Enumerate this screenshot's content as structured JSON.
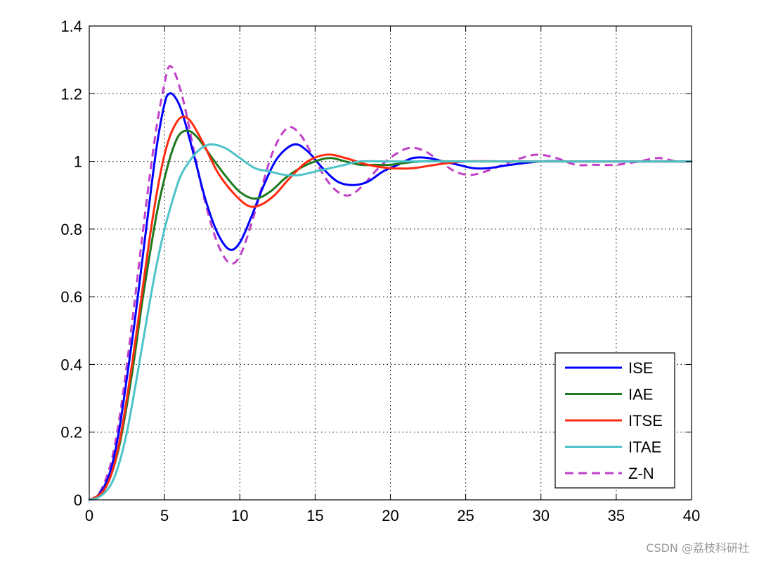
{
  "chart_data": {
    "type": "line",
    "title": "",
    "xlabel": "",
    "ylabel": "",
    "xlim": [
      0,
      40
    ],
    "ylim": [
      0,
      1.4
    ],
    "xticks": [
      "0",
      "5",
      "10",
      "15",
      "20",
      "25",
      "30",
      "35",
      "40"
    ],
    "yticks": [
      "0",
      "0.2",
      "0.4",
      "0.6",
      "0.8",
      "1",
      "1.2",
      "1.4"
    ],
    "grid": true,
    "legend_position": "bottom-right",
    "series": [
      {
        "name": "ISE",
        "color": "#0000ff",
        "dash": "solid",
        "points": [
          [
            0,
            0
          ],
          [
            0.5,
            0.01
          ],
          [
            1,
            0.04
          ],
          [
            1.5,
            0.1
          ],
          [
            2,
            0.21
          ],
          [
            2.5,
            0.36
          ],
          [
            3,
            0.52
          ],
          [
            3.5,
            0.7
          ],
          [
            4,
            0.88
          ],
          [
            4.5,
            1.05
          ],
          [
            5,
            1.17
          ],
          [
            5.3,
            1.2
          ],
          [
            5.7,
            1.19
          ],
          [
            6.2,
            1.14
          ],
          [
            7,
            1.01
          ],
          [
            7.7,
            0.89
          ],
          [
            8.5,
            0.79
          ],
          [
            9.3,
            0.74
          ],
          [
            10,
            0.76
          ],
          [
            10.8,
            0.84
          ],
          [
            11.6,
            0.93
          ],
          [
            12.5,
            1.01
          ],
          [
            13.6,
            1.05
          ],
          [
            14.5,
            1.03
          ],
          [
            15.5,
            0.98
          ],
          [
            16.5,
            0.94
          ],
          [
            17.5,
            0.93
          ],
          [
            18.5,
            0.94
          ],
          [
            19.5,
            0.97
          ],
          [
            20.5,
            0.99
          ],
          [
            21.5,
            1.01
          ],
          [
            22.5,
            1.01
          ],
          [
            23.5,
            1.0
          ],
          [
            24.5,
            0.99
          ],
          [
            25.5,
            0.98
          ],
          [
            26.5,
            0.98
          ],
          [
            28,
            0.99
          ],
          [
            30,
            1.0
          ],
          [
            32,
            1.0
          ],
          [
            35,
            1.0
          ],
          [
            38,
            1.0
          ],
          [
            40,
            1.0
          ]
        ]
      },
      {
        "name": "IAE",
        "color": "#1f7a1f",
        "dash": "solid",
        "points": [
          [
            0,
            0
          ],
          [
            0.5,
            0.01
          ],
          [
            1,
            0.03
          ],
          [
            1.5,
            0.08
          ],
          [
            2,
            0.16
          ],
          [
            2.5,
            0.28
          ],
          [
            3,
            0.42
          ],
          [
            3.5,
            0.58
          ],
          [
            4,
            0.72
          ],
          [
            4.5,
            0.85
          ],
          [
            5,
            0.95
          ],
          [
            5.5,
            1.03
          ],
          [
            6,
            1.08
          ],
          [
            6.6,
            1.09
          ],
          [
            7.2,
            1.07
          ],
          [
            8,
            1.02
          ],
          [
            9,
            0.96
          ],
          [
            10,
            0.91
          ],
          [
            11,
            0.89
          ],
          [
            12,
            0.91
          ],
          [
            13,
            0.95
          ],
          [
            14,
            0.98
          ],
          [
            15,
            1.0
          ],
          [
            16,
            1.01
          ],
          [
            17,
            1.0
          ],
          [
            18,
            0.99
          ],
          [
            19,
            0.99
          ],
          [
            20,
            0.99
          ],
          [
            22,
            1.0
          ],
          [
            25,
            1.0
          ],
          [
            30,
            1.0
          ],
          [
            35,
            1.0
          ],
          [
            40,
            1.0
          ]
        ]
      },
      {
        "name": "ITSE",
        "color": "#ff2a10",
        "dash": "solid",
        "points": [
          [
            0,
            0
          ],
          [
            0.5,
            0.01
          ],
          [
            1,
            0.03
          ],
          [
            1.5,
            0.08
          ],
          [
            2,
            0.17
          ],
          [
            2.5,
            0.3
          ],
          [
            3,
            0.45
          ],
          [
            3.5,
            0.61
          ],
          [
            4,
            0.77
          ],
          [
            4.5,
            0.91
          ],
          [
            5,
            1.02
          ],
          [
            5.5,
            1.09
          ],
          [
            6.1,
            1.13
          ],
          [
            6.7,
            1.12
          ],
          [
            7.5,
            1.06
          ],
          [
            8.5,
            0.97
          ],
          [
            9.5,
            0.91
          ],
          [
            10.5,
            0.87
          ],
          [
            11.3,
            0.87
          ],
          [
            12.3,
            0.9
          ],
          [
            13.3,
            0.95
          ],
          [
            14.5,
            1.0
          ],
          [
            15.8,
            1.02
          ],
          [
            17,
            1.01
          ],
          [
            18.5,
            0.99
          ],
          [
            20,
            0.98
          ],
          [
            21.5,
            0.98
          ],
          [
            23,
            0.99
          ],
          [
            25,
            1.0
          ],
          [
            28,
            1.0
          ],
          [
            32,
            1.0
          ],
          [
            36,
            1.0
          ],
          [
            40,
            1.0
          ]
        ]
      },
      {
        "name": "ITAE",
        "color": "#4cc3c8",
        "dash": "solid",
        "points": [
          [
            0,
            0
          ],
          [
            0.5,
            0.005
          ],
          [
            1,
            0.02
          ],
          [
            1.5,
            0.05
          ],
          [
            2,
            0.11
          ],
          [
            2.5,
            0.2
          ],
          [
            3,
            0.32
          ],
          [
            3.5,
            0.45
          ],
          [
            4,
            0.58
          ],
          [
            4.5,
            0.7
          ],
          [
            5,
            0.8
          ],
          [
            5.5,
            0.88
          ],
          [
            6,
            0.95
          ],
          [
            6.5,
            0.99
          ],
          [
            7.2,
            1.03
          ],
          [
            8,
            1.05
          ],
          [
            9,
            1.04
          ],
          [
            10,
            1.01
          ],
          [
            11,
            0.98
          ],
          [
            12,
            0.97
          ],
          [
            13,
            0.96
          ],
          [
            14,
            0.96
          ],
          [
            15,
            0.97
          ],
          [
            16,
            0.98
          ],
          [
            17,
            0.99
          ],
          [
            18,
            1.0
          ],
          [
            20,
            1.0
          ],
          [
            25,
            1.0
          ],
          [
            30,
            1.0
          ],
          [
            35,
            1.0
          ],
          [
            40,
            1.0
          ]
        ]
      },
      {
        "name": "Z-N",
        "color": "#c040c8",
        "dash": "dashed",
        "points": [
          [
            0,
            0
          ],
          [
            0.5,
            0.01
          ],
          [
            1,
            0.05
          ],
          [
            1.5,
            0.12
          ],
          [
            2,
            0.24
          ],
          [
            2.5,
            0.4
          ],
          [
            3,
            0.58
          ],
          [
            3.5,
            0.77
          ],
          [
            4,
            0.95
          ],
          [
            4.5,
            1.11
          ],
          [
            5,
            1.23
          ],
          [
            5.3,
            1.28
          ],
          [
            5.7,
            1.26
          ],
          [
            6.3,
            1.17
          ],
          [
            7,
            1.02
          ],
          [
            7.7,
            0.88
          ],
          [
            8.5,
            0.76
          ],
          [
            9.3,
            0.7
          ],
          [
            10,
            0.72
          ],
          [
            10.8,
            0.82
          ],
          [
            11.5,
            0.93
          ],
          [
            12.3,
            1.04
          ],
          [
            13.2,
            1.1
          ],
          [
            14,
            1.08
          ],
          [
            14.8,
            1.02
          ],
          [
            15.7,
            0.95
          ],
          [
            16.5,
            0.91
          ],
          [
            17.3,
            0.9
          ],
          [
            18.2,
            0.93
          ],
          [
            19.2,
            0.98
          ],
          [
            20.3,
            1.02
          ],
          [
            21.3,
            1.04
          ],
          [
            22.3,
            1.03
          ],
          [
            23.3,
            1.0
          ],
          [
            24.3,
            0.97
          ],
          [
            25.3,
            0.96
          ],
          [
            26.3,
            0.97
          ],
          [
            27.5,
            0.99
          ],
          [
            28.7,
            1.01
          ],
          [
            29.8,
            1.02
          ],
          [
            31,
            1.01
          ],
          [
            32.3,
            0.99
          ],
          [
            33.5,
            0.99
          ],
          [
            35,
            0.99
          ],
          [
            36.5,
            1.0
          ],
          [
            37.8,
            1.01
          ],
          [
            39,
            1.0
          ],
          [
            40,
            1.0
          ]
        ]
      }
    ]
  },
  "watermark": "CSDN @荔枝科研社"
}
